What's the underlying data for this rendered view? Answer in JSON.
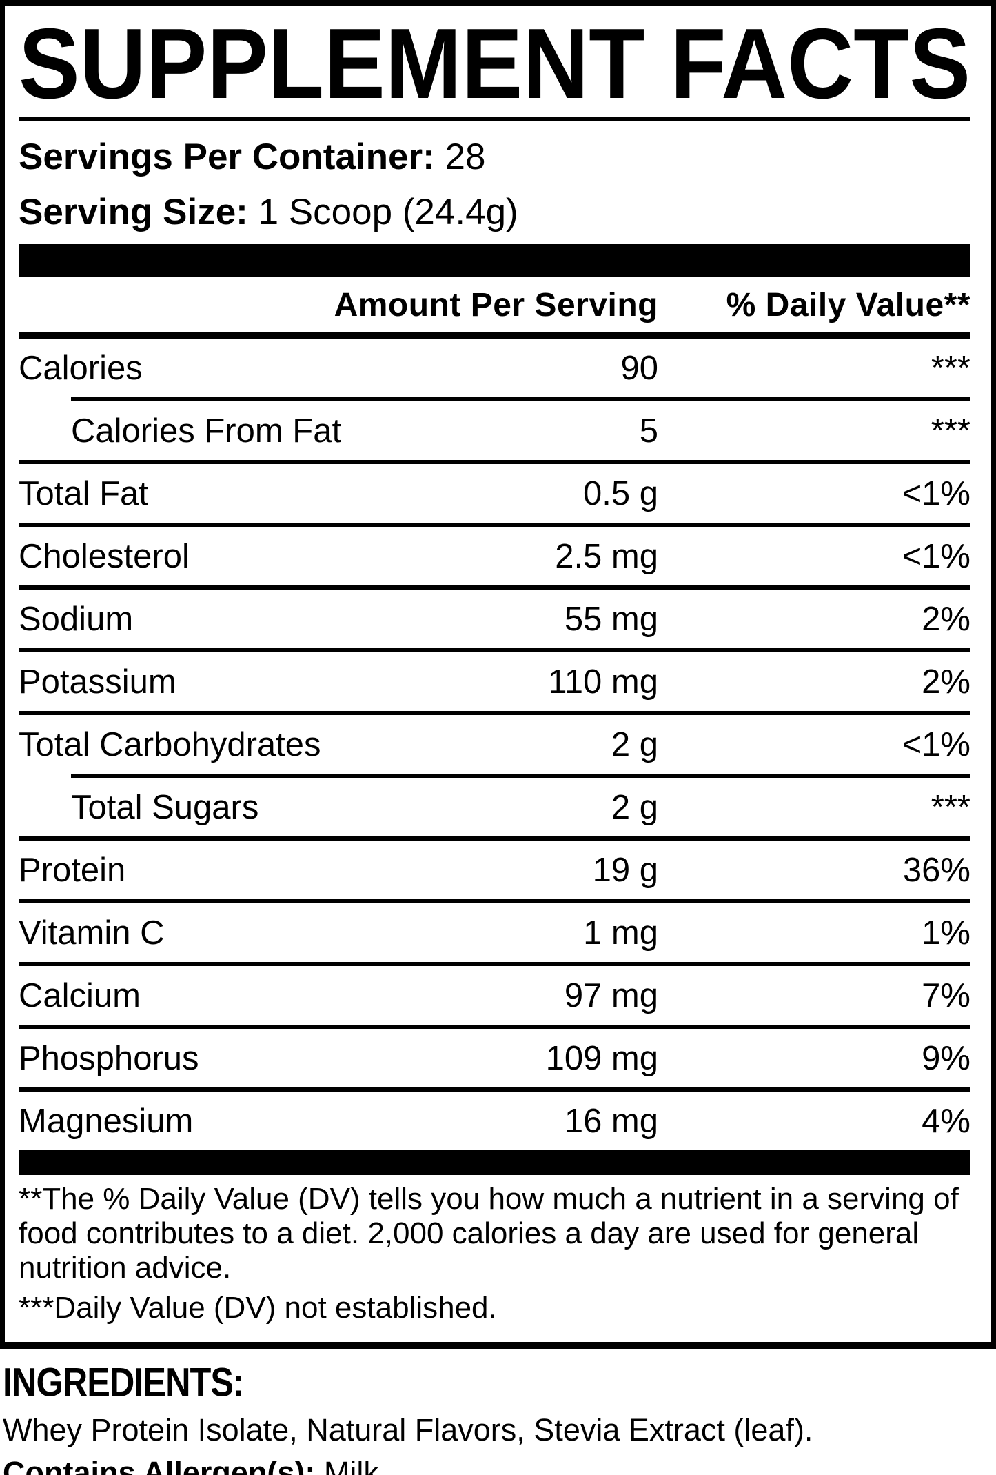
{
  "label": {
    "title": "SUPPLEMENT FACTS",
    "servings_per_container_label": "Servings Per Container:",
    "servings_per_container_value": "28",
    "serving_size_label": "Serving Size:",
    "serving_size_value": "1 Scoop (24.4g)",
    "header": {
      "amount": "Amount Per Serving",
      "dv": "% Daily Value**"
    },
    "rows": [
      {
        "name": "Calories",
        "amount": "90",
        "dv": "***",
        "indent": false
      },
      {
        "name": "Calories From Fat",
        "amount": "5",
        "dv": "***",
        "indent": true
      },
      {
        "name": "Total Fat",
        "amount": "0.5 g",
        "dv": "<1%",
        "indent": false
      },
      {
        "name": "Cholesterol",
        "amount": "2.5 mg",
        "dv": "<1%",
        "indent": false
      },
      {
        "name": "Sodium",
        "amount": "55 mg",
        "dv": "2%",
        "indent": false
      },
      {
        "name": "Potassium",
        "amount": "110 mg",
        "dv": "2%",
        "indent": false
      },
      {
        "name": "Total Carbohydrates",
        "amount": "2 g",
        "dv": "<1%",
        "indent": false
      },
      {
        "name": "Total Sugars",
        "amount": "2 g",
        "dv": "***",
        "indent": true
      },
      {
        "name": "Protein",
        "amount": "19 g",
        "dv": "36%",
        "indent": false
      },
      {
        "name": "Vitamin C",
        "amount": "1 mg",
        "dv": "1%",
        "indent": false
      },
      {
        "name": "Calcium",
        "amount": "97 mg",
        "dv": "7%",
        "indent": false
      },
      {
        "name": "Phosphorus",
        "amount": "109 mg",
        "dv": "9%",
        "indent": false
      },
      {
        "name": "Magnesium",
        "amount": "16 mg",
        "dv": "4%",
        "indent": false
      }
    ],
    "footnotes": {
      "dv_note": "**The % Daily Value (DV) tells you how much a nutrient in a serving of food contributes to a diet. 2,000 calories a day are used for general nutrition advice.",
      "dv_not_established": "***Daily Value (DV) not established."
    }
  },
  "ingredients": {
    "heading": "INGREDIENTS:",
    "list": "Whey Protein Isolate, Natural Flavors, Stevia Extract (leaf).",
    "allergen_label": "Contains Allergen(s):",
    "allergen_value": "Milk"
  },
  "colors": {
    "text": "#000000",
    "background": "#ffffff",
    "bar": "#000000"
  }
}
